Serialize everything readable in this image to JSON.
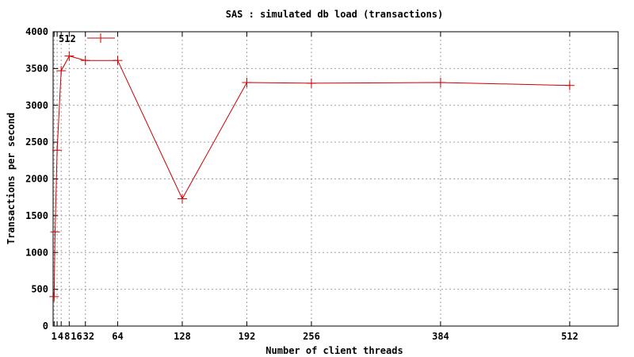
{
  "chart_data": {
    "type": "line",
    "title": "SAS : simulated db load (transactions)",
    "xlabel": "Number of client threads",
    "ylabel": "Transactions per second",
    "xlim": [
      0,
      560
    ],
    "ylim": [
      0,
      4000
    ],
    "x_ticks": [
      1,
      4,
      8,
      16,
      32,
      64,
      128,
      192,
      256,
      384,
      512
    ],
    "x_tick_labels": [
      "1",
      "4",
      "8",
      "16",
      "32",
      "64",
      "128",
      "192",
      "256",
      "384",
      "512"
    ],
    "y_ticks": [
      0,
      500,
      1000,
      1500,
      2000,
      2500,
      3000,
      3500,
      4000
    ],
    "grid": true,
    "legend_position": "top-left",
    "series": [
      {
        "name": "512",
        "color": "#cc0000",
        "x": [
          1,
          2,
          4,
          8,
          16,
          32,
          64,
          128,
          192,
          256,
          384,
          512
        ],
        "y": [
          400,
          1280,
          2390,
          3470,
          3670,
          3610,
          3610,
          1730,
          3310,
          3300,
          3310,
          3270
        ]
      }
    ]
  }
}
